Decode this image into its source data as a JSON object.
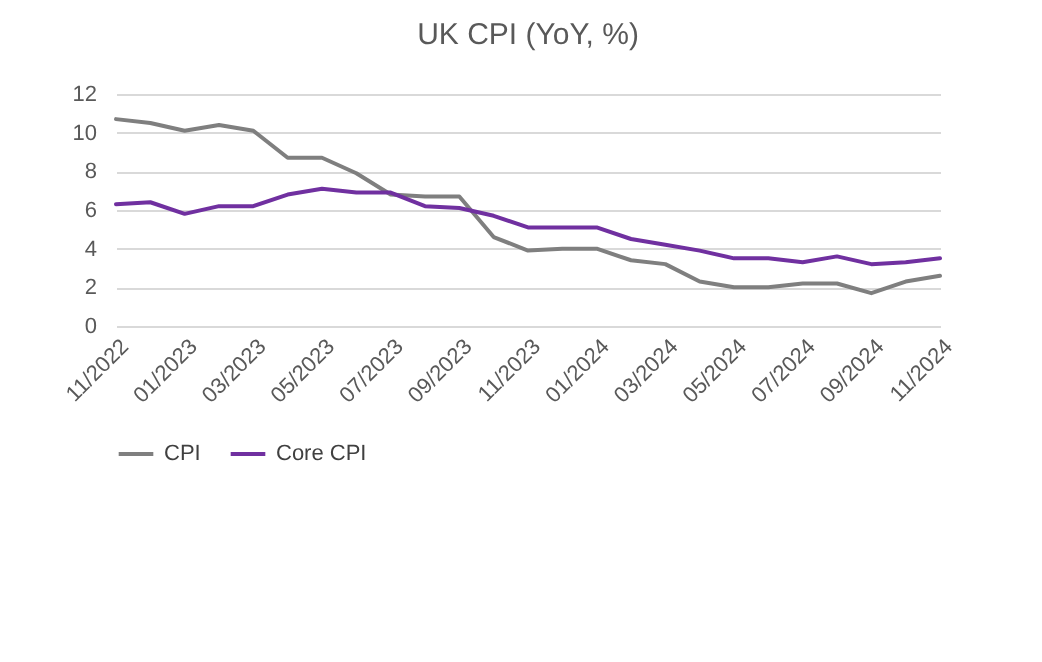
{
  "chart_data": {
    "type": "line",
    "title": "UK CPI (YoY, %)",
    "categories": [
      "11/2022",
      null,
      "01/2023",
      null,
      "03/2023",
      null,
      "05/2023",
      null,
      "07/2023",
      null,
      "09/2023",
      null,
      "11/2023",
      null,
      "01/2024",
      null,
      "03/2024",
      null,
      "05/2024",
      null,
      "07/2024",
      null,
      "09/2024",
      null,
      "11/2024"
    ],
    "series": [
      {
        "name": "CPI",
        "color": "#7f7f7f",
        "values": [
          10.7,
          10.5,
          10.1,
          10.4,
          10.1,
          8.7,
          8.7,
          7.9,
          6.8,
          6.7,
          6.7,
          4.6,
          3.9,
          4.0,
          4.0,
          3.4,
          3.2,
          2.3,
          2.0,
          2.0,
          2.2,
          2.2,
          1.7,
          2.3,
          2.6
        ]
      },
      {
        "name": "Core CPI",
        "color": "#7030a0",
        "values": [
          6.3,
          6.4,
          5.8,
          6.2,
          6.2,
          6.8,
          7.1,
          6.9,
          6.9,
          6.2,
          6.1,
          5.7,
          5.1,
          5.1,
          5.1,
          4.5,
          4.2,
          3.9,
          3.5,
          3.5,
          3.3,
          3.6,
          3.2,
          3.3,
          3.5
        ]
      }
    ],
    "ylim": [
      0,
      12
    ],
    "yticks": [
      0,
      2,
      4,
      6,
      8,
      10,
      12
    ],
    "grid": "y",
    "legend": "bottom",
    "marker": "none",
    "line_style": "solid"
  }
}
